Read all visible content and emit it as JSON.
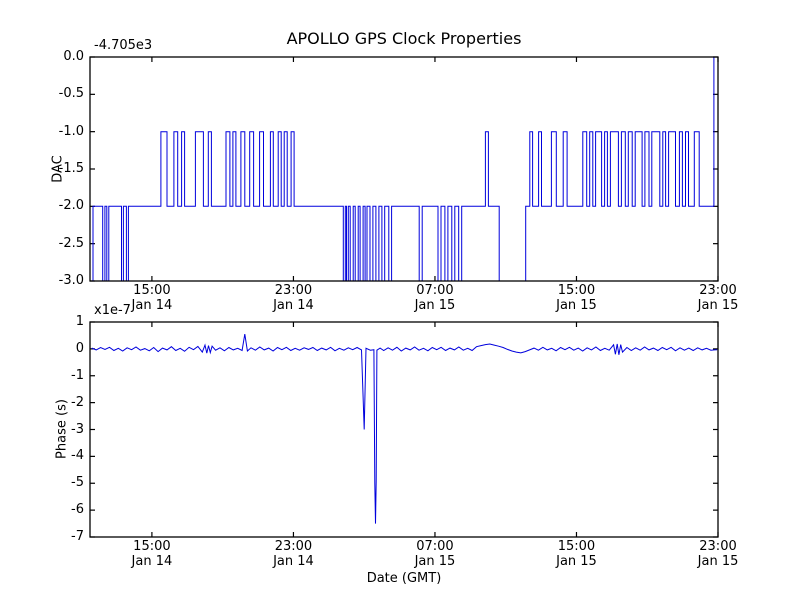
{
  "title": "APOLLO GPS Clock Properties",
  "style": {
    "background": "#ffffff",
    "line_color": "#0000dd",
    "axis_color": "#000000",
    "text_color": "#000000"
  },
  "chart_data": [
    {
      "type": "line",
      "subtype": "step",
      "name": "dac-subplot",
      "ylabel": "DAC",
      "offset_label": "-4.705e3",
      "ylim": [
        -3.0,
        0.0
      ],
      "y_ticks": [
        0.0,
        -0.5,
        -1.0,
        -1.5,
        -2.0,
        -2.5,
        -3.0
      ],
      "y_tick_labels": [
        "0.0",
        "-0.5",
        "-1.0",
        "-1.5",
        "-2.0",
        "-2.5",
        "-3.0"
      ],
      "x_range_hours": [
        11.5,
        47.0
      ],
      "x_end_hours": 46.95,
      "x_ticks_hours": [
        15,
        23,
        31,
        39,
        47
      ],
      "x_tick_labels": [
        {
          "time": "15:00",
          "date": "Jan 14"
        },
        {
          "time": "23:00",
          "date": "Jan 14"
        },
        {
          "time": "07:00",
          "date": "Jan 15"
        },
        {
          "time": "15:00",
          "date": "Jan 15"
        },
        {
          "time": "23:00",
          "date": "Jan 15"
        }
      ],
      "grid": false,
      "steps": [
        [
          11.5,
          -3
        ],
        [
          11.67,
          -2
        ],
        [
          12.22,
          -3
        ],
        [
          12.34,
          -2
        ],
        [
          12.45,
          -3
        ],
        [
          12.56,
          -2
        ],
        [
          13.28,
          -3
        ],
        [
          13.39,
          -2
        ],
        [
          13.56,
          -3
        ],
        [
          13.67,
          -2
        ],
        [
          15.51,
          -1
        ],
        [
          15.85,
          -2
        ],
        [
          16.24,
          -1
        ],
        [
          16.46,
          -2
        ],
        [
          16.68,
          -1
        ],
        [
          16.85,
          -2
        ],
        [
          17.46,
          -1
        ],
        [
          17.91,
          -2
        ],
        [
          18.19,
          -1
        ],
        [
          18.36,
          -2
        ],
        [
          19.19,
          -1
        ],
        [
          19.41,
          -2
        ],
        [
          19.58,
          -1
        ],
        [
          19.75,
          -2
        ],
        [
          20.03,
          -1
        ],
        [
          20.25,
          -2
        ],
        [
          20.53,
          -1
        ],
        [
          20.75,
          -2
        ],
        [
          21.09,
          -1
        ],
        [
          21.31,
          -2
        ],
        [
          21.7,
          -1
        ],
        [
          21.86,
          -2
        ],
        [
          22.14,
          -1
        ],
        [
          22.31,
          -2
        ],
        [
          22.48,
          -1
        ],
        [
          22.65,
          -2
        ],
        [
          22.87,
          -1
        ],
        [
          23.04,
          -2
        ],
        [
          25.82,
          -3
        ],
        [
          25.93,
          -2
        ],
        [
          26.0,
          -3
        ],
        [
          26.1,
          -2
        ],
        [
          26.21,
          -3
        ],
        [
          26.38,
          -2
        ],
        [
          26.49,
          -3
        ],
        [
          26.66,
          -2
        ],
        [
          26.77,
          -3
        ],
        [
          26.94,
          -2
        ],
        [
          27.05,
          -3
        ],
        [
          27.16,
          -2
        ],
        [
          27.33,
          -3
        ],
        [
          27.49,
          -2
        ],
        [
          27.66,
          -3
        ],
        [
          27.83,
          -2
        ],
        [
          28.0,
          -3
        ],
        [
          28.16,
          -2
        ],
        [
          28.39,
          -3
        ],
        [
          28.55,
          -2
        ],
        [
          30.11,
          -3
        ],
        [
          30.28,
          -2
        ],
        [
          31.17,
          -3
        ],
        [
          31.34,
          -2
        ],
        [
          31.56,
          -3
        ],
        [
          31.73,
          -2
        ],
        [
          31.95,
          -3
        ],
        [
          32.12,
          -2
        ],
        [
          32.34,
          -3
        ],
        [
          32.51,
          -2
        ],
        [
          33.85,
          -1
        ],
        [
          34.02,
          -2
        ],
        [
          34.63,
          -3
        ],
        [
          36.13,
          -2
        ],
        [
          36.36,
          -1
        ],
        [
          36.52,
          -2
        ],
        [
          36.86,
          -1
        ],
        [
          37.02,
          -2
        ],
        [
          37.58,
          -1
        ],
        [
          37.86,
          -2
        ],
        [
          38.25,
          -1
        ],
        [
          38.47,
          -2
        ],
        [
          39.36,
          -1
        ],
        [
          39.58,
          -2
        ],
        [
          39.75,
          -1
        ],
        [
          39.92,
          -2
        ],
        [
          40.08,
          -1
        ],
        [
          40.42,
          -2
        ],
        [
          40.59,
          -1
        ],
        [
          40.75,
          -2
        ],
        [
          40.92,
          -1
        ],
        [
          41.37,
          -2
        ],
        [
          41.54,
          -1
        ],
        [
          41.76,
          -2
        ],
        [
          41.93,
          -1
        ],
        [
          42.15,
          -2
        ],
        [
          42.32,
          -1
        ],
        [
          42.71,
          -2
        ],
        [
          42.87,
          -1
        ],
        [
          43.1,
          -2
        ],
        [
          43.26,
          -1
        ],
        [
          43.71,
          -2
        ],
        [
          43.88,
          -1
        ],
        [
          44.04,
          -2
        ],
        [
          44.21,
          -1
        ],
        [
          44.6,
          -2
        ],
        [
          44.82,
          -1
        ],
        [
          44.99,
          -2
        ],
        [
          45.16,
          -1
        ],
        [
          45.33,
          -2
        ],
        [
          45.66,
          -1
        ],
        [
          45.94,
          -2
        ],
        [
          46.77,
          0
        ]
      ]
    },
    {
      "type": "line",
      "name": "phase-subplot",
      "ylabel": "Phase (s)",
      "xlabel": "Date (GMT)",
      "offset_label": "x1e-7",
      "unit_multiplier": "1e-7",
      "ylim": [
        -7,
        1
      ],
      "y_ticks": [
        1,
        0,
        -1,
        -2,
        -3,
        -4,
        -5,
        -6,
        -7
      ],
      "y_tick_labels": [
        "1",
        "0",
        "-1",
        "-2",
        "-3",
        "-4",
        "-5",
        "-6",
        "-7"
      ],
      "x_range_hours": [
        11.5,
        47.0
      ],
      "x_ticks_hours": [
        15,
        23,
        31,
        39,
        47
      ],
      "x_tick_labels": [
        {
          "time": "15:00",
          "date": "Jan 14"
        },
        {
          "time": "23:00",
          "date": "Jan 14"
        },
        {
          "time": "07:00",
          "date": "Jan 15"
        },
        {
          "time": "15:00",
          "date": "Jan 15"
        },
        {
          "time": "23:00",
          "date": "Jan 15"
        }
      ],
      "grid": false,
      "spikes": [
        {
          "x_hours": 27.0,
          "value": -3.0
        },
        {
          "x_hours": 27.64,
          "value": -6.5
        }
      ],
      "points": [
        [
          11.6,
          0.03
        ],
        [
          11.85,
          -0.04
        ],
        [
          12.1,
          0.05
        ],
        [
          12.35,
          -0.02
        ],
        [
          12.6,
          0.06
        ],
        [
          12.85,
          -0.06
        ],
        [
          13.1,
          0.02
        ],
        [
          13.35,
          -0.08
        ],
        [
          13.6,
          0.04
        ],
        [
          13.85,
          -0.03
        ],
        [
          14.1,
          0.07
        ],
        [
          14.35,
          -0.05
        ],
        [
          14.6,
          0.01
        ],
        [
          14.85,
          -0.07
        ],
        [
          15.1,
          0.05
        ],
        [
          15.35,
          -0.1
        ],
        [
          15.6,
          0.03
        ],
        [
          15.85,
          -0.04
        ],
        [
          16.1,
          0.08
        ],
        [
          16.35,
          -0.06
        ],
        [
          16.6,
          0.02
        ],
        [
          16.85,
          -0.09
        ],
        [
          17.1,
          0.06
        ],
        [
          17.35,
          -0.03
        ],
        [
          17.6,
          0.09
        ],
        [
          17.85,
          -0.12
        ],
        [
          18.0,
          0.14
        ],
        [
          18.1,
          -0.16
        ],
        [
          18.2,
          0.12
        ],
        [
          18.3,
          -0.14
        ],
        [
          18.4,
          0.1
        ],
        [
          18.6,
          -0.05
        ],
        [
          18.85,
          0.04
        ],
        [
          19.1,
          -0.07
        ],
        [
          19.35,
          0.05
        ],
        [
          19.6,
          -0.04
        ],
        [
          19.85,
          0.02
        ],
        [
          20.1,
          -0.06
        ],
        [
          20.25,
          0.55
        ],
        [
          20.4,
          -0.08
        ],
        [
          20.6,
          0.04
        ],
        [
          20.85,
          -0.05
        ],
        [
          21.1,
          0.07
        ],
        [
          21.35,
          -0.04
        ],
        [
          21.6,
          0.03
        ],
        [
          21.85,
          -0.08
        ],
        [
          22.1,
          0.05
        ],
        [
          22.35,
          -0.03
        ],
        [
          22.6,
          0.06
        ],
        [
          22.85,
          -0.06
        ],
        [
          23.1,
          0.02
        ],
        [
          23.35,
          -0.05
        ],
        [
          23.6,
          0.04
        ],
        [
          23.85,
          -0.02
        ],
        [
          24.1,
          0.05
        ],
        [
          24.35,
          -0.06
        ],
        [
          24.6,
          0.03
        ],
        [
          24.85,
          -0.04
        ],
        [
          25.1,
          0.06
        ],
        [
          25.35,
          -0.07
        ],
        [
          25.6,
          0.02
        ],
        [
          25.85,
          -0.05
        ],
        [
          26.1,
          0.04
        ],
        [
          26.35,
          -0.03
        ],
        [
          26.6,
          0.05
        ],
        [
          26.85,
          -0.04
        ],
        [
          27.0,
          -3.0
        ],
        [
          27.1,
          0.02
        ],
        [
          27.35,
          -0.05
        ],
        [
          27.55,
          -0.03
        ],
        [
          27.6,
          -5.0
        ],
        [
          27.64,
          -6.5
        ],
        [
          27.68,
          -4.9
        ],
        [
          27.72,
          -0.05
        ],
        [
          27.9,
          0.03
        ],
        [
          28.1,
          -0.06
        ],
        [
          28.35,
          0.04
        ],
        [
          28.6,
          -0.05
        ],
        [
          28.85,
          0.06
        ],
        [
          29.1,
          -0.08
        ],
        [
          29.35,
          0.03
        ],
        [
          29.6,
          -0.04
        ],
        [
          29.85,
          0.07
        ],
        [
          30.1,
          -0.05
        ],
        [
          30.35,
          0.02
        ],
        [
          30.6,
          -0.07
        ],
        [
          30.85,
          0.05
        ],
        [
          31.1,
          -0.03
        ],
        [
          31.35,
          0.06
        ],
        [
          31.6,
          -0.06
        ],
        [
          31.85,
          0.03
        ],
        [
          32.1,
          -0.04
        ],
        [
          32.35,
          0.07
        ],
        [
          32.6,
          -0.05
        ],
        [
          32.85,
          0.02
        ],
        [
          33.1,
          -0.06
        ],
        [
          33.35,
          0.08
        ],
        [
          33.6,
          0.12
        ],
        [
          33.85,
          0.16
        ],
        [
          34.1,
          0.18
        ],
        [
          34.35,
          0.14
        ],
        [
          34.6,
          0.1
        ],
        [
          34.85,
          0.05
        ],
        [
          35.1,
          -0.02
        ],
        [
          35.35,
          -0.08
        ],
        [
          35.6,
          -0.12
        ],
        [
          35.85,
          -0.15
        ],
        [
          36.1,
          -0.1
        ],
        [
          36.35,
          -0.04
        ],
        [
          36.6,
          0.03
        ],
        [
          36.85,
          -0.05
        ],
        [
          37.1,
          0.06
        ],
        [
          37.35,
          -0.04
        ],
        [
          37.6,
          0.02
        ],
        [
          37.85,
          -0.07
        ],
        [
          38.1,
          0.05
        ],
        [
          38.35,
          -0.03
        ],
        [
          38.6,
          0.06
        ],
        [
          38.85,
          -0.05
        ],
        [
          39.1,
          0.03
        ],
        [
          39.35,
          -0.08
        ],
        [
          39.6,
          0.04
        ],
        [
          39.85,
          -0.04
        ],
        [
          40.1,
          0.07
        ],
        [
          40.35,
          -0.06
        ],
        [
          40.6,
          0.02
        ],
        [
          40.85,
          -0.05
        ],
        [
          41.1,
          0.15
        ],
        [
          41.2,
          -0.2
        ],
        [
          41.3,
          0.18
        ],
        [
          41.4,
          -0.22
        ],
        [
          41.5,
          0.16
        ],
        [
          41.6,
          -0.12
        ],
        [
          41.85,
          0.05
        ],
        [
          42.1,
          -0.06
        ],
        [
          42.35,
          0.04
        ],
        [
          42.6,
          -0.05
        ],
        [
          42.85,
          0.07
        ],
        [
          43.1,
          -0.04
        ],
        [
          43.35,
          0.03
        ],
        [
          43.6,
          -0.06
        ],
        [
          43.85,
          0.05
        ],
        [
          44.1,
          -0.03
        ],
        [
          44.35,
          0.06
        ],
        [
          44.6,
          -0.07
        ],
        [
          44.85,
          0.04
        ],
        [
          45.1,
          -0.05
        ],
        [
          45.35,
          0.03
        ],
        [
          45.6,
          -0.06
        ],
        [
          45.85,
          0.04
        ],
        [
          46.1,
          -0.04
        ],
        [
          46.35,
          0.02
        ],
        [
          46.6,
          -0.05
        ],
        [
          46.8,
          -0.04
        ],
        [
          46.95,
          -0.03
        ]
      ]
    }
  ]
}
